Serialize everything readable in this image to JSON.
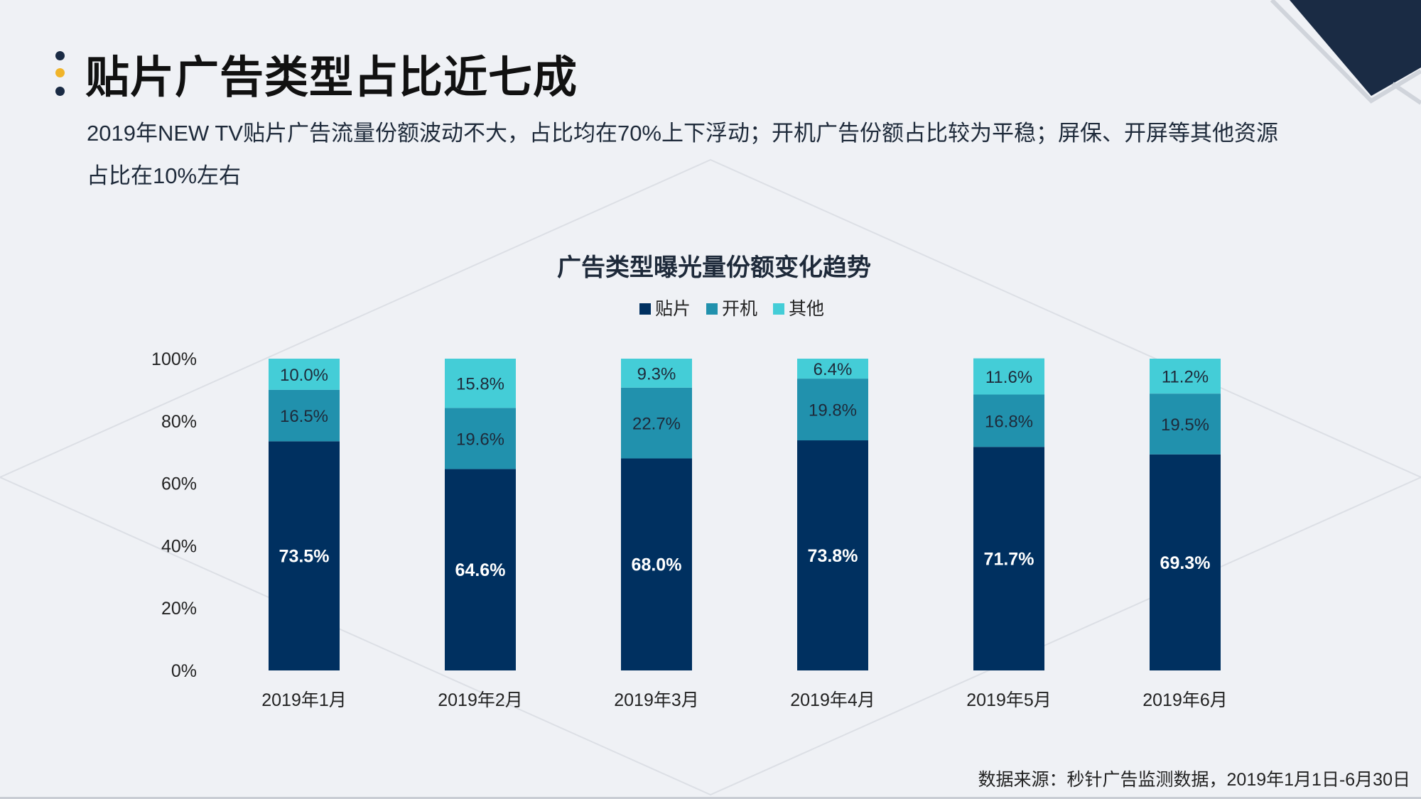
{
  "slide": {
    "title": "贴片广告类型占比近七成",
    "subtitle": "2019年NEW TV贴片广告流量份额波动不大，占比均在70%上下浮动；开机广告份额占比较为平稳；屏保、开屏等其他资源占比在10%左右",
    "source": "数据来源：秒针广告监测数据，2019年1月1日-6月30日"
  },
  "colors": {
    "background": "#eff1f5",
    "title_text": "#111111",
    "accent_navy": "#1a2b44",
    "accent_yellow": "#f0b429",
    "series_tiepian": "#003060",
    "series_kaiji": "#2191ad",
    "series_qita": "#44cdd7"
  },
  "chart_data": {
    "type": "bar",
    "stacked": true,
    "title": "广告类型曝光量份额变化趋势",
    "categories": [
      "2019年1月",
      "2019年2月",
      "2019年3月",
      "2019年4月",
      "2019年5月",
      "2019年6月"
    ],
    "series": [
      {
        "name": "贴片",
        "color": "#003060",
        "values": [
          73.5,
          64.6,
          68.0,
          73.8,
          71.7,
          69.3
        ],
        "labels": [
          "73.5%",
          "64.6%",
          "68.0%",
          "73.8%",
          "71.7%",
          "69.3%"
        ]
      },
      {
        "name": "开机",
        "color": "#2191ad",
        "values": [
          16.5,
          19.6,
          22.7,
          19.8,
          16.8,
          19.5
        ],
        "labels": [
          "16.5%",
          "19.6%",
          "22.7%",
          "19.8%",
          "16.8%",
          "19.5%"
        ]
      },
      {
        "name": "其他",
        "color": "#44cdd7",
        "values": [
          10.0,
          15.8,
          9.3,
          6.4,
          11.6,
          11.2
        ],
        "labels": [
          "10.0%",
          "15.8%",
          "9.3%",
          "6.4%",
          "11.6%",
          "11.2%"
        ]
      }
    ],
    "y_ticks": [
      "0%",
      "20%",
      "40%",
      "60%",
      "80%",
      "100%"
    ],
    "ylim": [
      0,
      100
    ],
    "xlabel": "",
    "ylabel": "",
    "grid": false,
    "legend_position": "top-center"
  }
}
